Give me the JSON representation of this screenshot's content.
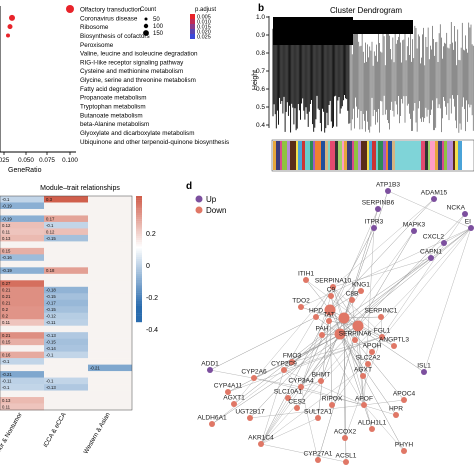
{
  "panel_labels": {
    "b": "b",
    "d": "d"
  },
  "colors": {
    "dot_red": "#e8232a",
    "up": "#7c4f9e",
    "down": "#e07766",
    "edge": "#9a9a9a",
    "heat_pos": "#c8442e",
    "heat_neg": "#2a6cae"
  },
  "panel_a": {
    "pathways": [
      "Olfactory transduction",
      "Coronavirus disease",
      "Ribosome",
      "Biosynthesis of cofactors",
      "Peroxisome",
      "Valine, leucine and isoleucine degradation",
      "RIG-I-like receptor signaling pathway",
      "Cysteine and methionine metabolism",
      "Glycine, serine and threonine metabolism",
      "Fatty acid degradation",
      "Propanoate metabolism",
      "Tryptophan metabolism",
      "Butanoate metabolism",
      "beta-Alanine metabolism",
      "Glyoxylate and dicarboxylate metabolism",
      "Ubiquinone and other terpenoid-quinone biosynthesis"
    ],
    "x_ticks": [
      "025",
      "0.050",
      "0.075",
      "0.100"
    ],
    "xlabel": "GeneRatio",
    "legend_count_title": "Count",
    "legend_count_values": [
      "50",
      "100",
      "150"
    ],
    "legend_padj_title": "p.adjust",
    "legend_padj_values": [
      "0.005",
      "0.010",
      "0.015",
      "0.020",
      "0.025"
    ]
  },
  "panel_b": {
    "title": "Cluster Dendrogram",
    "ylabel": "Height",
    "y_ticks": [
      "1.0",
      "0.9",
      "0.8",
      "0.7",
      "0.6",
      "0.5",
      "0.4"
    ]
  },
  "panel_c": {
    "title": "Module–trait relationships",
    "columns": [
      "Tumor & Nontumor",
      "iCCA & eCCA",
      "Western & Asian"
    ],
    "scale_ticks": [
      "0.2",
      "0",
      "-0.2",
      "-0.4"
    ],
    "rows": [
      {
        "v": [
          -0.1,
          0.3,
          0.0
        ],
        "t": [
          "-0.1",
          "0.3",
          ""
        ]
      },
      {
        "v": [
          -0.19,
          0.0,
          0.0
        ],
        "t": [
          "-0.19",
          "",
          ""
        ]
      },
      {
        "v": [
          0.0,
          0.0,
          0.0
        ],
        "t": [
          "",
          "",
          ""
        ]
      },
      {
        "v": [
          -0.19,
          0.17,
          0.0
        ],
        "t": [
          "-0.19",
          "0.17",
          ""
        ]
      },
      {
        "v": [
          0.12,
          -0.1,
          0.0
        ],
        "t": [
          "0.12",
          "-0.1",
          ""
        ]
      },
      {
        "v": [
          0.11,
          0.12,
          0.0
        ],
        "t": [
          "0.11",
          "0.12",
          ""
        ]
      },
      {
        "v": [
          0.13,
          -0.15,
          0.0
        ],
        "t": [
          "0.13",
          "-0.15",
          ""
        ]
      },
      {
        "v": [
          0.0,
          0.0,
          0.0
        ],
        "t": [
          "",
          "",
          ""
        ]
      },
      {
        "v": [
          0.15,
          0.0,
          0.0
        ],
        "t": [
          "0.15",
          "",
          ""
        ]
      },
      {
        "v": [
          -0.16,
          0.0,
          0.0
        ],
        "t": [
          "-0.16",
          "",
          ""
        ]
      },
      {
        "v": [
          0.0,
          0.0,
          0.0
        ],
        "t": [
          "",
          "",
          ""
        ]
      },
      {
        "v": [
          -0.19,
          0.18,
          0.0
        ],
        "t": [
          "-0.19",
          "0.18",
          ""
        ]
      },
      {
        "v": [
          0.0,
          0.0,
          0.0
        ],
        "t": [
          "",
          "",
          ""
        ]
      },
      {
        "v": [
          0.27,
          0.0,
          0.0
        ],
        "t": [
          "0.27",
          "",
          ""
        ]
      },
      {
        "v": [
          0.21,
          -0.18,
          0.0
        ],
        "t": [
          "0.21",
          "-0.18",
          ""
        ]
      },
      {
        "v": [
          0.21,
          -0.15,
          0.0
        ],
        "t": [
          "0.21",
          "-0.15",
          ""
        ]
      },
      {
        "v": [
          0.21,
          -0.17,
          0.0
        ],
        "t": [
          "0.21",
          "-0.17",
          ""
        ]
      },
      {
        "v": [
          0.2,
          -0.15,
          0.0
        ],
        "t": [
          "0.2",
          "-0.15",
          ""
        ]
      },
      {
        "v": [
          0.2,
          -0.12,
          0.0
        ],
        "t": [
          "0.2",
          "-0.12",
          ""
        ]
      },
      {
        "v": [
          0.11,
          -0.11,
          0.0
        ],
        "t": [
          "0.11",
          "-0.11",
          ""
        ]
      },
      {
        "v": [
          0.0,
          0.0,
          0.0
        ],
        "t": [
          "",
          "",
          ""
        ]
      },
      {
        "v": [
          0.21,
          -0.13,
          0.0
        ],
        "t": [
          "0.21",
          "-0.13",
          ""
        ]
      },
      {
        "v": [
          0.15,
          -0.15,
          0.0
        ],
        "t": [
          "0.15",
          "-0.15",
          ""
        ]
      },
      {
        "v": [
          0.0,
          -0.14,
          0.0
        ],
        "t": [
          "",
          "-0.14",
          ""
        ]
      },
      {
        "v": [
          0.16,
          -0.1,
          0.0
        ],
        "t": [
          "0.16",
          "-0.1",
          ""
        ]
      },
      {
        "v": [
          -0.1,
          0.0,
          0.0
        ],
        "t": [
          "-0.1",
          "",
          ""
        ]
      },
      {
        "v": [
          0.0,
          0.0,
          -0.21
        ],
        "t": [
          "",
          "",
          "-0.21"
        ]
      },
      {
        "v": [
          -0.21,
          0.0,
          0.0
        ],
        "t": [
          "-0.21",
          "",
          ""
        ]
      },
      {
        "v": [
          -0.11,
          -0.1,
          0.0
        ],
        "t": [
          "-0.11",
          "-0.1",
          ""
        ]
      },
      {
        "v": [
          -0.1,
          -0.13,
          0.0
        ],
        "t": [
          "-0.1",
          "-0.13",
          ""
        ]
      },
      {
        "v": [
          0.0,
          0.0,
          0.0
        ],
        "t": [
          "",
          "",
          ""
        ]
      },
      {
        "v": [
          0.13,
          0.0,
          0.0
        ],
        "t": [
          "0.13",
          "",
          ""
        ]
      },
      {
        "v": [
          0.11,
          0.0,
          0.0
        ],
        "t": [
          "0.11",
          "",
          ""
        ]
      }
    ]
  },
  "panel_d": {
    "legend_up": "Up",
    "legend_down": "Down",
    "nodes": [
      {
        "label": "ATP1B3",
        "type": "up"
      },
      {
        "label": "ADAM15",
        "type": "up"
      },
      {
        "label": "NCKA",
        "type": "up"
      },
      {
        "label": "EI",
        "type": "up"
      },
      {
        "label": "SERPINB6",
        "type": "up"
      },
      {
        "label": "ITPR3",
        "type": "up"
      },
      {
        "label": "MAPK3",
        "type": "up"
      },
      {
        "label": "CXCL2",
        "type": "up"
      },
      {
        "label": "CAPN1",
        "type": "up"
      },
      {
        "label": "ITIH1",
        "type": "down"
      },
      {
        "label": "SERPINA10",
        "type": "down"
      },
      {
        "label": "C9",
        "type": "down"
      },
      {
        "label": "C8B",
        "type": "down"
      },
      {
        "label": "KNG1",
        "type": "down"
      },
      {
        "label": "TDO2",
        "type": "down"
      },
      {
        "label": "HPD",
        "type": "down"
      },
      {
        "label": "SERPINC1",
        "type": "down"
      },
      {
        "label": "FGL1",
        "type": "down"
      },
      {
        "label": "TAT",
        "type": "down"
      },
      {
        "label": "PAH",
        "type": "down"
      },
      {
        "label": "SERPINA6",
        "type": "down"
      },
      {
        "label": "APOH",
        "type": "down"
      },
      {
        "label": "ANGPTL3",
        "type": "down"
      },
      {
        "label": "FMO3",
        "type": "down"
      },
      {
        "label": "CYP2C9",
        "type": "down"
      },
      {
        "label": "ADD1",
        "type": "up"
      },
      {
        "label": "CYP2A6",
        "type": "down"
      },
      {
        "label": "SLC2A2",
        "type": "down"
      },
      {
        "label": "ISL1",
        "type": "up"
      },
      {
        "label": "AGXT",
        "type": "down"
      },
      {
        "label": "CYP4A11",
        "type": "down"
      },
      {
        "label": "CYP3A4",
        "type": "down"
      },
      {
        "label": "BHMT",
        "type": "down"
      },
      {
        "label": "APOC4",
        "type": "down"
      },
      {
        "label": "SLC10A1",
        "type": "down"
      },
      {
        "label": "CES2",
        "type": "down"
      },
      {
        "label": "AGXT1",
        "type": "down"
      },
      {
        "label": "RIPOX",
        "type": "down"
      },
      {
        "label": "APOF",
        "type": "down"
      },
      {
        "label": "HPR",
        "type": "down"
      },
      {
        "label": "UGT2B17",
        "type": "down"
      },
      {
        "label": "SULT2A1",
        "type": "down"
      },
      {
        "label": "ALDH6A1",
        "type": "down"
      },
      {
        "label": "ALDH1L1",
        "type": "down"
      },
      {
        "label": "ACOX2",
        "type": "down"
      },
      {
        "label": "AKR1C4",
        "type": "down"
      },
      {
        "label": "CYP27A1",
        "type": "down"
      },
      {
        "label": "PHYH",
        "type": "down"
      },
      {
        "label": "ACSL1",
        "type": "down"
      }
    ]
  }
}
